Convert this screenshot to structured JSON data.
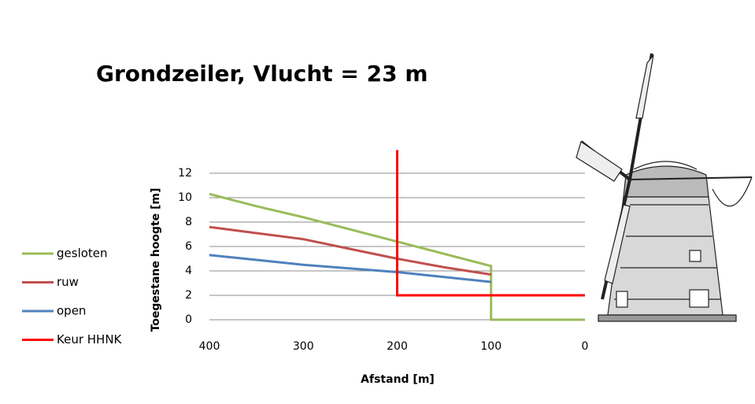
{
  "chart_data": {
    "type": "line",
    "title": "Grondzeiler, Vlucht = 23 m",
    "xlabel": "Afstand [m]",
    "ylabel": "Toegestane hoogte [m]",
    "xlim": [
      400,
      0
    ],
    "xticks": [
      400,
      300,
      200,
      100,
      0
    ],
    "ylim": [
      0,
      12
    ],
    "yticks": [
      0,
      2,
      4,
      6,
      8,
      10,
      12
    ],
    "grid": true,
    "series": [
      {
        "name": "gesloten",
        "color": "#9bbb59",
        "x": [
          400,
          350,
          300,
          250,
          200,
          150,
          100,
          100,
          0
        ],
        "values": [
          10.3,
          9.3,
          8.4,
          7.4,
          6.4,
          5.4,
          4.4,
          0,
          0
        ]
      },
      {
        "name": "ruw",
        "color": "#c0504d",
        "x": [
          400,
          350,
          300,
          250,
          200,
          150,
          100
        ],
        "values": [
          7.6,
          7.1,
          6.6,
          5.8,
          5.0,
          4.3,
          3.7
        ]
      },
      {
        "name": "open",
        "color": "#4f81bd",
        "x": [
          400,
          350,
          300,
          250,
          200,
          150,
          100
        ],
        "values": [
          5.3,
          4.9,
          4.5,
          4.2,
          3.9,
          3.5,
          3.1
        ]
      },
      {
        "name": "Keur HHNK",
        "color": "#ff0000",
        "x": [
          200,
          200,
          0
        ],
        "values": [
          13.9,
          2,
          2
        ]
      }
    ]
  }
}
